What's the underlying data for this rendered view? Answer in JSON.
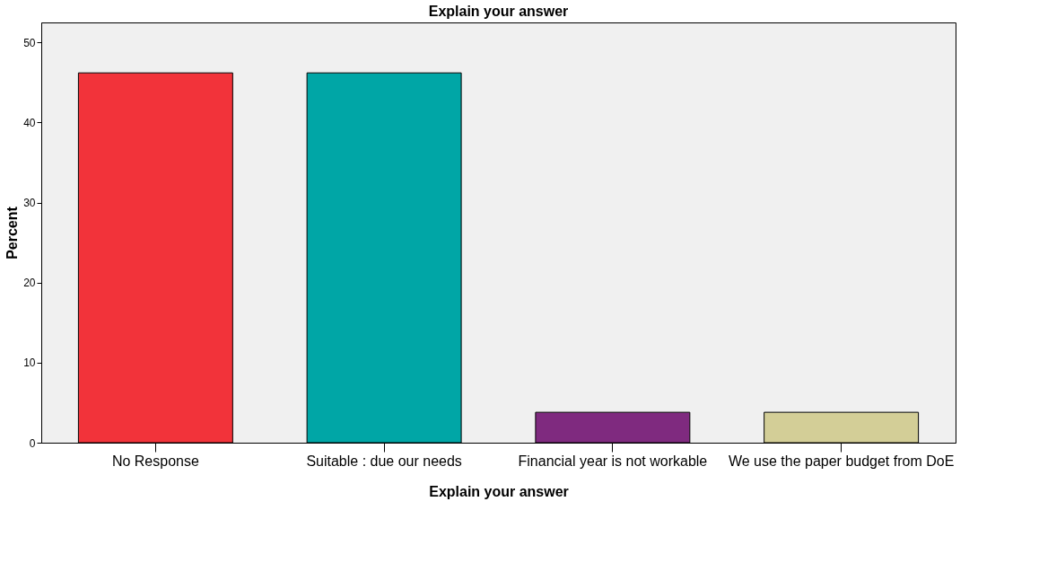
{
  "chart_data": {
    "type": "bar",
    "title": "Explain your answer",
    "xlabel": "Explain your answer",
    "ylabel": "Percent",
    "categories": [
      "No Response",
      "Suitable : due our needs",
      "Financial year is not workable",
      "We use the paper budget from DoE"
    ],
    "values": [
      46.2,
      46.2,
      3.8,
      3.8
    ],
    "colors": [
      "#f2333a",
      "#00a6a6",
      "#7f2a7f",
      "#d3ce97"
    ],
    "ylim": [
      0,
      52.5
    ],
    "yticks": [
      0,
      10,
      20,
      30,
      40,
      50
    ],
    "grid": false
  }
}
